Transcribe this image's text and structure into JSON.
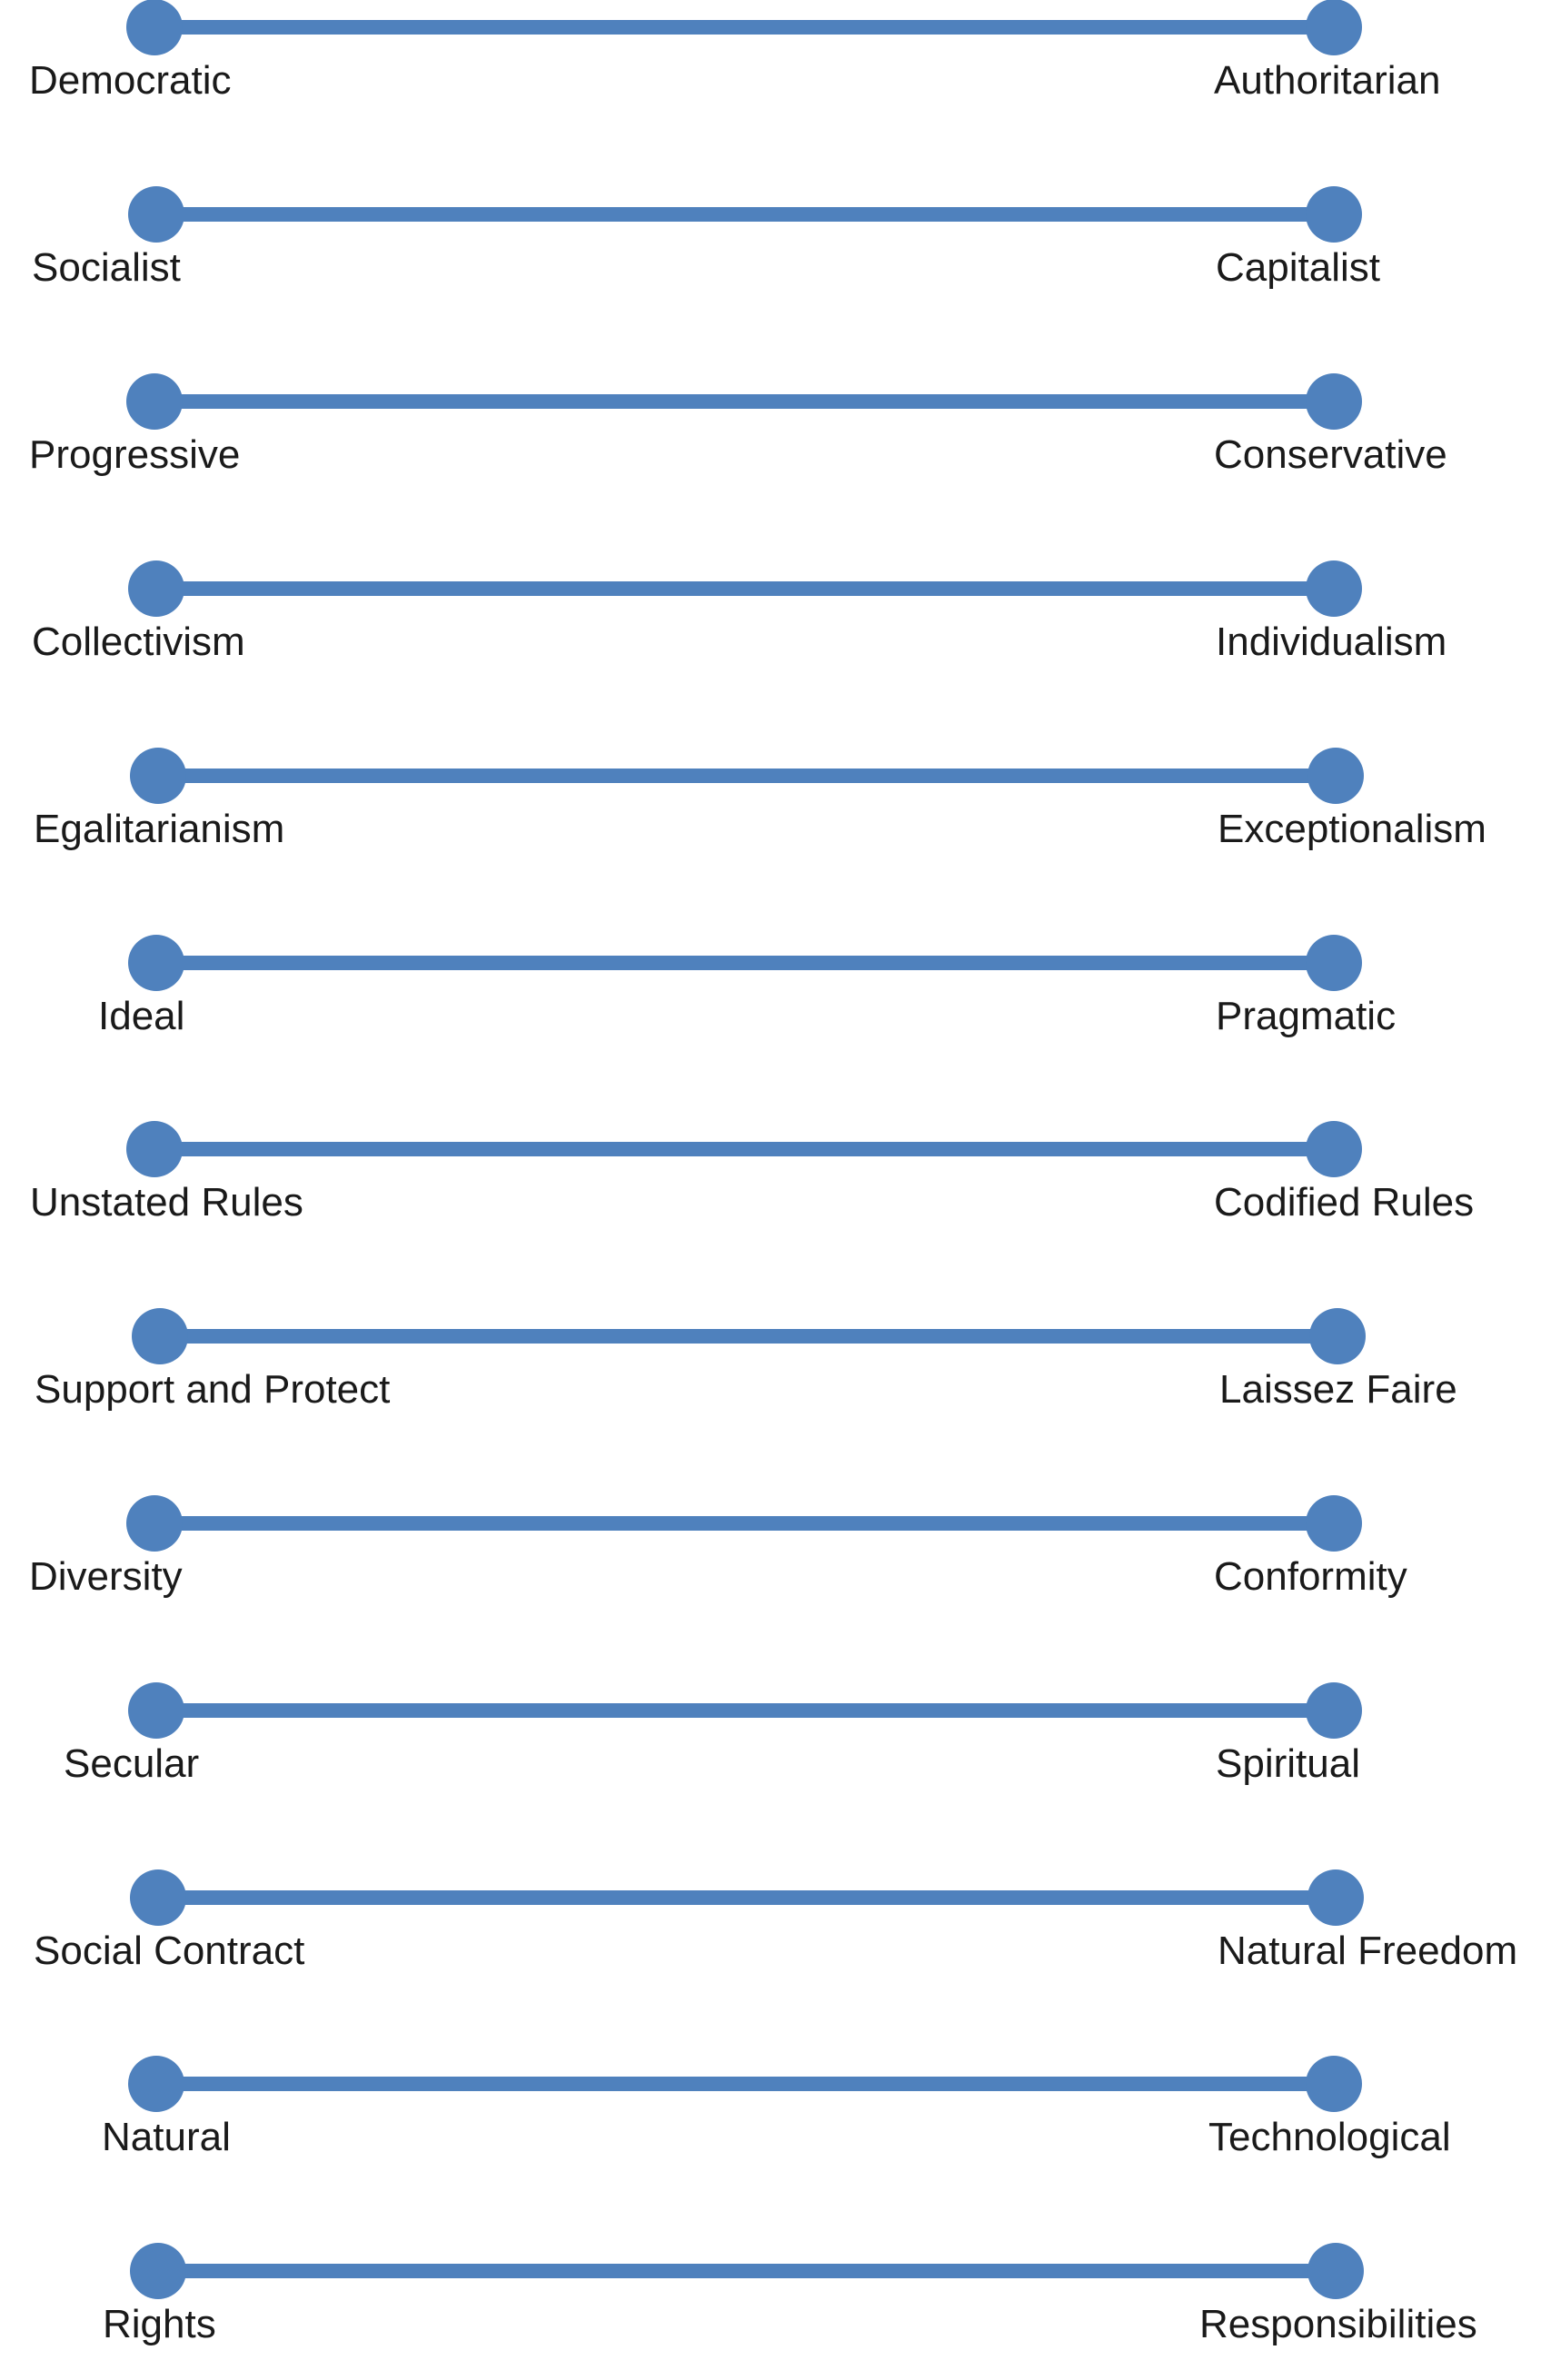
{
  "colors": {
    "line": "#4f81bd",
    "text": "#1a1a1a",
    "background": "#ffffff"
  },
  "spectrums": [
    {
      "left": "Democratic",
      "right": "Authoritarian"
    },
    {
      "left": "Socialist",
      "right": "Capitalist"
    },
    {
      "left": "Progressive",
      "right": "Conservative"
    },
    {
      "left": "Collectivism",
      "right": "Individualism"
    },
    {
      "left": "Egalitarianism",
      "right": "Exceptionalism"
    },
    {
      "left": "Ideal",
      "right": "Pragmatic"
    },
    {
      "left": "Unstated Rules",
      "right": "Codified Rules"
    },
    {
      "left": "Support and Protect",
      "right": "Laissez Faire"
    },
    {
      "left": "Diversity",
      "right": "Conformity"
    },
    {
      "left": "Secular",
      "right": "Spiritual"
    },
    {
      "left": "Social Contract",
      "right": "Natural Freedom"
    },
    {
      "left": "Natural",
      "right": "Technological"
    },
    {
      "left": "Rights",
      "right": "Responsibilities"
    }
  ]
}
